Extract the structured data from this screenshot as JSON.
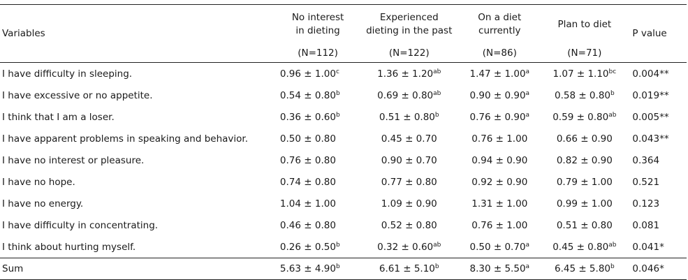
{
  "headers": {
    "variables": "Variables",
    "groups": [
      {
        "line1": "No interest",
        "line2": "in dieting",
        "n": "(N=112)"
      },
      {
        "line1": "Experienced",
        "line2": "dieting in the past",
        "n": "(N=122)"
      },
      {
        "line1": "On a diet",
        "line2": "currently",
        "n": "(N=86)"
      },
      {
        "line1": "Plan to diet",
        "line2": "",
        "n": "(N=71)"
      }
    ],
    "p_value": "P value"
  },
  "rows": [
    {
      "label": "I have difficulty in sleeping.",
      "v1": "0.96 ± 1.00",
      "s1": "c",
      "v2": "1.36 ± 1.20",
      "s2": "ab",
      "v3": "1.47 ± 1.00",
      "s3": "a",
      "v4": "1.07 ± 1.10",
      "s4": "bc",
      "p": "0.004**"
    },
    {
      "label": "I have excessive or no appetite.",
      "v1": "0.54 ± 0.80",
      "s1": "b",
      "v2": "0.69 ± 0.80",
      "s2": "ab",
      "v3": "0.90 ± 0.90",
      "s3": "a",
      "v4": "0.58 ± 0.80",
      "s4": "b",
      "p": "0.019**"
    },
    {
      "label": "I think that I am a loser.",
      "v1": "0.36 ± 0.60",
      "s1": "b",
      "v2": "0.51 ± 0.80",
      "s2": "b",
      "v3": "0.76 ± 0.90",
      "s3": "a",
      "v4": "0.59 ± 0.80",
      "s4": "ab",
      "p": "0.005**"
    },
    {
      "label": "I have apparent problems in speaking and behavior.",
      "v1": "0.50 ± 0.80",
      "s1": "",
      "v2": "0.45 ± 0.70",
      "s2": "",
      "v3": "0.76 ± 1.00",
      "s3": "",
      "v4": "0.66 ± 0.90",
      "s4": "",
      "p": "0.043**"
    },
    {
      "label": "I have no interest or pleasure.",
      "v1": "0.76 ± 0.80",
      "s1": "",
      "v2": "0.90 ± 0.70",
      "s2": "",
      "v3": "0.94 ± 0.90",
      "s3": "",
      "v4": "0.82 ± 0.90",
      "s4": "",
      "p": "0.364"
    },
    {
      "label": "I have no hope.",
      "v1": "0.74 ± 0.80",
      "s1": "",
      "v2": "0.77 ± 0.80",
      "s2": "",
      "v3": "0.92 ± 0.90",
      "s3": "",
      "v4": "0.79 ± 1.00",
      "s4": "",
      "p": "0.521"
    },
    {
      "label": "I have no energy.",
      "v1": "1.04 ± 1.00",
      "s1": "",
      "v2": "1.09 ± 0.90",
      "s2": "",
      "v3": "1.31 ± 1.00",
      "s3": "",
      "v4": "0.99 ± 1.00",
      "s4": "",
      "p": "0.123"
    },
    {
      "label": "I have difficulty in concentrating.",
      "v1": "0.46 ± 0.80",
      "s1": "",
      "v2": "0.52 ± 0.80",
      "s2": "",
      "v3": "0.76 ± 1.00",
      "s3": "",
      "v4": "0.51 ± 0.80",
      "s4": "",
      "p": "0.081"
    },
    {
      "label": "I think about hurting myself.",
      "v1": "0.26 ± 0.50",
      "s1": "b",
      "v2": "0.32 ± 0.60",
      "s2": "ab",
      "v3": "0.50 ± 0.70",
      "s3": "a",
      "v4": "0.45 ± 0.80",
      "s4": "ab",
      "p": "0.041*"
    }
  ],
  "sum": {
    "label": "Sum",
    "v1": "5.63 ± 4.90",
    "s1": "b",
    "v2": "6.61 ± 5.10",
    "s2": "b",
    "v3": "8.30 ± 5.50",
    "s3": "a",
    "v4": "6.45 ± 5.80",
    "s4": "b",
    "p": "0.046*"
  }
}
